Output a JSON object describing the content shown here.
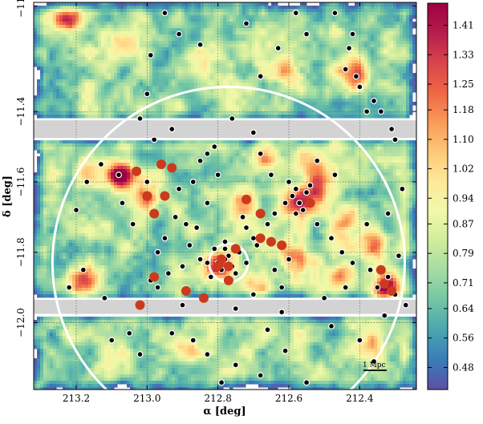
{
  "chart_data": {
    "type": "heatmap",
    "xlabel": "α [deg]",
    "ylabel": "δ [deg]",
    "xlim": [
      213.32,
      212.24
    ],
    "ylim": [
      -12.19,
      -11.09
    ],
    "x_ticks": [
      {
        "value": 213.2,
        "label": "213.2"
      },
      {
        "value": 213.0,
        "label": "213.0"
      },
      {
        "value": 212.8,
        "label": "212.8"
      },
      {
        "value": 212.6,
        "label": "212.6"
      },
      {
        "value": 212.4,
        "label": "212.4"
      }
    ],
    "y_ticks": [
      {
        "value": -11.1,
        "label": "−11."
      },
      {
        "value": -11.4,
        "label": "−11.4"
      },
      {
        "value": -11.6,
        "label": "−11.6"
      },
      {
        "value": -11.8,
        "label": "−11.8"
      },
      {
        "value": -12.0,
        "label": "−12.0"
      }
    ],
    "grid": true,
    "colorbar": {
      "colormap": "Spectral_r",
      "range": [
        0.42,
        1.47
      ],
      "tick_labels": [
        "0.48",
        "0.56",
        "0.64",
        "0.71",
        "0.79",
        "0.87",
        "0.94",
        "1.02",
        "1.10",
        "1.18",
        "1.25",
        "1.33",
        "1.41"
      ],
      "tick_values": [
        0.48,
        0.56,
        0.64,
        0.71,
        0.79,
        0.87,
        0.94,
        1.02,
        1.1,
        1.18,
        1.25,
        1.33,
        1.41
      ],
      "colors": [
        "#5e4fa2",
        "#3a7cb8",
        "#4aa6b0",
        "#72c6a4",
        "#a5dba4",
        "#d0ec9c",
        "#f1f9a9",
        "#fee999",
        "#fdc877",
        "#f99a59",
        "#ef6644",
        "#d9444d",
        "#b51d4b",
        "#9e0142"
      ]
    },
    "masked_strips_dec": [
      [
        -11.425,
        -11.475
      ],
      [
        -11.935,
        -11.975
      ]
    ],
    "circles": [
      {
        "center": [
          212.77,
          -11.83
        ],
        "radius_deg": 0.055
      },
      {
        "center": [
          212.77,
          -11.83
        ],
        "radius_deg": 0.5
      }
    ],
    "scale_bar_label": "1 Mpc",
    "overdense_peaks": [
      {
        "ra": 213.22,
        "dec": -11.14,
        "level": 1.2
      },
      {
        "ra": 213.17,
        "dec": -11.58,
        "level": 1.05
      },
      {
        "ra": 213.08,
        "dec": -11.58,
        "level": 1.45
      },
      {
        "ra": 213.0,
        "dec": -11.65,
        "level": 1.2
      },
      {
        "ra": 213.18,
        "dec": -11.88,
        "level": 1.25
      },
      {
        "ra": 212.8,
        "dec": -11.84,
        "level": 1.3
      },
      {
        "ra": 212.73,
        "dec": -11.67,
        "level": 1.15
      },
      {
        "ra": 212.57,
        "dec": -11.66,
        "level": 1.35
      },
      {
        "ra": 212.41,
        "dec": -11.29,
        "level": 1.3
      },
      {
        "ra": 212.33,
        "dec": -11.9,
        "level": 1.35
      },
      {
        "ra": 212.58,
        "dec": -11.82,
        "level": 1.15
      },
      {
        "ra": 212.45,
        "dec": -11.86,
        "level": 1.1
      },
      {
        "ra": 212.68,
        "dec": -11.91,
        "level": 0.95
      },
      {
        "ra": 212.52,
        "dec": -11.62,
        "level": 1.05
      },
      {
        "ra": 212.66,
        "dec": -11.54,
        "level": 1.0
      },
      {
        "ra": 212.35,
        "dec": -11.78,
        "level": 1.1
      },
      {
        "ra": 212.9,
        "dec": -12.08,
        "level": 1.0
      },
      {
        "ra": 212.36,
        "dec": -12.08,
        "level": 1.1
      },
      {
        "ra": 212.6,
        "dec": -11.29,
        "level": 1.0
      },
      {
        "ra": 212.85,
        "dec": -11.28,
        "level": 0.95
      },
      {
        "ra": 213.07,
        "dec": -11.21,
        "level": 0.95
      },
      {
        "ra": 212.53,
        "dec": -11.55,
        "level": 1.05
      },
      {
        "ra": 212.44,
        "dec": -11.72,
        "level": 1.05
      }
    ],
    "black_points": [
      [
        212.77,
        -11.81
      ],
      [
        212.78,
        -11.82
      ],
      [
        212.76,
        -11.84
      ],
      [
        212.79,
        -11.85
      ],
      [
        212.78,
        -11.79
      ],
      [
        212.8,
        -11.83
      ],
      [
        212.75,
        -11.86
      ],
      [
        212.82,
        -11.87
      ],
      [
        212.74,
        -11.8
      ],
      [
        212.77,
        -11.88
      ],
      [
        212.81,
        -11.79
      ],
      [
        212.83,
        -11.83
      ],
      [
        212.72,
        -11.83
      ],
      [
        212.78,
        -11.77
      ],
      [
        212.85,
        -11.82
      ],
      [
        212.59,
        -11.64
      ],
      [
        212.58,
        -11.62
      ],
      [
        212.57,
        -11.66
      ],
      [
        212.56,
        -11.68
      ],
      [
        212.6,
        -11.6
      ],
      [
        212.55,
        -11.63
      ],
      [
        212.61,
        -11.66
      ],
      [
        212.54,
        -11.61
      ],
      [
        212.58,
        -11.69
      ],
      [
        212.85,
        -11.54
      ],
      [
        212.83,
        -11.52
      ],
      [
        212.81,
        -11.5
      ],
      [
        212.8,
        -11.58
      ],
      [
        212.87,
        -11.6
      ],
      [
        212.91,
        -11.62
      ],
      [
        212.92,
        -11.7
      ],
      [
        212.89,
        -11.72
      ],
      [
        212.86,
        -11.73
      ],
      [
        212.95,
        -11.76
      ],
      [
        212.97,
        -11.8
      ],
      [
        212.9,
        -11.84
      ],
      [
        212.66,
        -11.72
      ],
      [
        212.69,
        -11.78
      ],
      [
        212.64,
        -11.69
      ],
      [
        212.72,
        -11.73
      ],
      [
        212.7,
        -11.76
      ],
      [
        212.44,
        -11.28
      ],
      [
        212.41,
        -11.3
      ],
      [
        212.4,
        -11.33
      ],
      [
        212.43,
        -11.22
      ],
      [
        212.42,
        -11.18
      ],
      [
        212.47,
        -11.12
      ],
      [
        212.38,
        -11.4
      ],
      [
        212.36,
        -11.37
      ],
      [
        212.34,
        -11.4
      ],
      [
        212.31,
        -11.45
      ],
      [
        212.3,
        -11.48
      ],
      [
        212.35,
        -11.9
      ],
      [
        212.32,
        -11.87
      ],
      [
        212.37,
        -11.85
      ],
      [
        212.3,
        -11.92
      ],
      [
        212.27,
        -11.95
      ],
      [
        212.33,
        -11.98
      ],
      [
        212.29,
        -11.81
      ],
      [
        212.95,
        -11.12
      ],
      [
        212.91,
        -11.18
      ],
      [
        212.85,
        -11.21
      ],
      [
        212.99,
        -11.24
      ],
      [
        213.0,
        -11.35
      ],
      [
        212.58,
        -11.12
      ],
      [
        212.55,
        -11.18
      ],
      [
        212.63,
        -11.22
      ],
      [
        212.68,
        -11.3
      ],
      [
        212.72,
        -11.15
      ],
      [
        212.76,
        -11.42
      ],
      [
        212.93,
        -11.45
      ],
      [
        212.98,
        -11.48
      ],
      [
        213.02,
        -11.42
      ],
      [
        212.7,
        -11.46
      ],
      [
        213.17,
        -11.6
      ],
      [
        213.13,
        -11.55
      ],
      [
        213.08,
        -11.58
      ],
      [
        213.07,
        -11.66
      ],
      [
        213.2,
        -11.68
      ],
      [
        213.22,
        -11.9
      ],
      [
        213.18,
        -11.85
      ],
      [
        213.12,
        -11.93
      ],
      [
        213.04,
        -11.72
      ],
      [
        212.99,
        -11.88
      ],
      [
        212.9,
        -11.95
      ],
      [
        212.75,
        -11.96
      ],
      [
        212.62,
        -11.97
      ],
      [
        212.5,
        -11.93
      ],
      [
        212.44,
        -11.9
      ],
      [
        212.93,
        -12.03
      ],
      [
        212.87,
        -12.05
      ],
      [
        213.05,
        -12.03
      ],
      [
        212.66,
        -12.02
      ],
      [
        212.48,
        -12.01
      ],
      [
        212.4,
        -12.05
      ],
      [
        212.61,
        -12.08
      ],
      [
        212.83,
        -12.09
      ],
      [
        213.02,
        -12.09
      ],
      [
        212.36,
        -12.11
      ],
      [
        212.68,
        -12.15
      ],
      [
        212.55,
        -12.17
      ],
      [
        212.79,
        -12.17
      ],
      [
        212.75,
        -12.12
      ],
      [
        213.1,
        -12.05
      ],
      [
        212.52,
        -11.72
      ],
      [
        212.48,
        -11.76
      ],
      [
        212.45,
        -11.8
      ],
      [
        212.42,
        -11.83
      ],
      [
        212.6,
        -11.82
      ],
      [
        212.64,
        -11.85
      ],
      [
        212.62,
        -11.9
      ],
      [
        212.7,
        -11.92
      ],
      [
        212.73,
        -11.7
      ],
      [
        212.94,
        -11.86
      ],
      [
        212.97,
        -11.9
      ],
      [
        212.38,
        -11.72
      ],
      [
        212.32,
        -11.69
      ],
      [
        212.47,
        -11.58
      ],
      [
        212.52,
        -11.54
      ],
      [
        212.28,
        -11.62
      ],
      [
        212.83,
        -11.66
      ],
      [
        212.88,
        -11.78
      ],
      [
        213.0,
        -11.6
      ],
      [
        212.68,
        -11.52
      ],
      [
        212.65,
        -11.58
      ]
    ],
    "red_points": [
      [
        213.03,
        -11.57
      ],
      [
        212.96,
        -11.55
      ],
      [
        212.93,
        -11.56
      ],
      [
        213.0,
        -11.64
      ],
      [
        212.95,
        -11.64
      ],
      [
        212.98,
        -11.69
      ],
      [
        212.98,
        -11.87
      ],
      [
        212.89,
        -11.91
      ],
      [
        213.02,
        -11.95
      ],
      [
        212.84,
        -11.93
      ],
      [
        212.79,
        -11.82
      ],
      [
        212.8,
        -11.84
      ],
      [
        212.77,
        -11.88
      ],
      [
        212.77,
        -11.84
      ],
      [
        212.75,
        -11.79
      ],
      [
        212.72,
        -11.65
      ],
      [
        212.68,
        -11.69
      ],
      [
        212.68,
        -11.76
      ],
      [
        212.65,
        -11.77
      ],
      [
        212.62,
        -11.78
      ],
      [
        212.54,
        -11.66
      ],
      [
        212.31,
        -11.91
      ],
      [
        212.33,
        -11.89
      ],
      [
        212.34,
        -11.85
      ]
    ]
  }
}
